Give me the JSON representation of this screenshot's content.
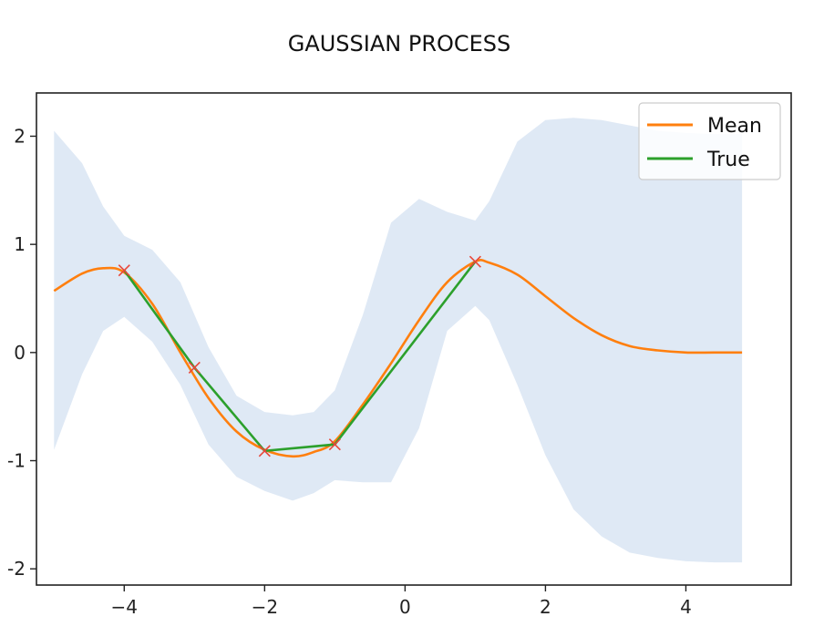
{
  "chart_data": {
    "type": "line",
    "title": "GAUSSIAN PROCESS",
    "xlabel": "",
    "ylabel": "",
    "xlim": [
      -5.25,
      5.5
    ],
    "ylim": [
      -2.15,
      2.4
    ],
    "xticks": [
      -4,
      -2,
      0,
      2,
      4
    ],
    "yticks": [
      2,
      1,
      0,
      -1,
      -2
    ],
    "ytick_labels": [
      "2",
      "1",
      "0",
      "-1",
      "-2"
    ],
    "xtick_labels": [
      "−4",
      "−2",
      "0",
      "2",
      "4"
    ],
    "grid": false,
    "legend_position": "top-right",
    "colors": {
      "mean": "#ff7f0e",
      "true": "#2ca02c",
      "band": "#dfe9f5",
      "marker": "#e8473a",
      "axes": "#222222"
    },
    "series": [
      {
        "name": "Mean",
        "x": [
          -5.0,
          -4.6,
          -4.3,
          -4.0,
          -3.6,
          -3.2,
          -2.8,
          -2.4,
          -2.0,
          -1.6,
          -1.3,
          -1.0,
          -0.6,
          -0.2,
          0.2,
          0.6,
          1.0,
          1.2,
          1.6,
          2.0,
          2.4,
          2.8,
          3.2,
          3.6,
          4.0,
          4.4,
          4.8
        ],
        "values": [
          0.57,
          0.73,
          0.78,
          0.74,
          0.45,
          0.0,
          -0.42,
          -0.73,
          -0.9,
          -0.96,
          -0.92,
          -0.82,
          -0.48,
          -0.1,
          0.3,
          0.65,
          0.84,
          0.83,
          0.72,
          0.52,
          0.32,
          0.16,
          0.06,
          0.02,
          0.0,
          0.0,
          0.0
        ]
      },
      {
        "name": "True",
        "x": [
          -4.0,
          -3.0,
          -2.0,
          -1.0,
          1.0
        ],
        "values": [
          0.76,
          -0.14,
          -0.91,
          -0.85,
          0.84
        ]
      }
    ],
    "observations": {
      "x": [
        -4.0,
        -3.0,
        -2.0,
        -1.0,
        1.0
      ],
      "values": [
        0.76,
        -0.14,
        -0.91,
        -0.85,
        0.84
      ]
    },
    "confidence_band": {
      "x": [
        -5.0,
        -4.6,
        -4.3,
        -4.0,
        -3.6,
        -3.2,
        -2.8,
        -2.4,
        -2.0,
        -1.6,
        -1.3,
        -1.0,
        -0.6,
        -0.2,
        0.2,
        0.6,
        1.0,
        1.2,
        1.6,
        2.0,
        2.4,
        2.8,
        3.2,
        3.6,
        4.0,
        4.4,
        4.8
      ],
      "upper": [
        2.05,
        1.75,
        1.35,
        1.08,
        0.95,
        0.65,
        0.05,
        -0.4,
        -0.55,
        -0.58,
        -0.55,
        -0.35,
        0.35,
        1.2,
        1.42,
        1.3,
        1.22,
        1.4,
        1.95,
        2.15,
        2.17,
        2.15,
        2.1,
        2.05,
        2.03,
        2.02,
        2.02
      ],
      "lower": [
        -0.9,
        -0.2,
        0.2,
        0.33,
        0.1,
        -0.3,
        -0.85,
        -1.15,
        -1.28,
        -1.37,
        -1.3,
        -1.18,
        -1.2,
        -1.2,
        -0.7,
        0.2,
        0.43,
        0.3,
        -0.3,
        -0.95,
        -1.45,
        -1.7,
        -1.85,
        -1.9,
        -1.93,
        -1.94,
        -1.94
      ]
    }
  }
}
